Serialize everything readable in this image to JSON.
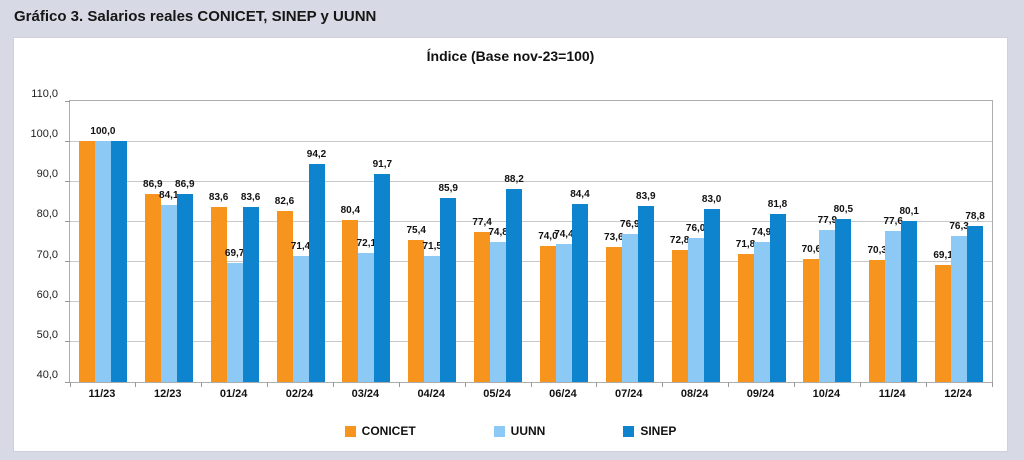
{
  "header": {
    "title": "Gráfico 3. Salarios reales CONICET, SINEP y UUNN"
  },
  "chart_data": {
    "type": "bar",
    "title": "Índice (Base nov-23=100)",
    "categories": [
      "11/23",
      "12/23",
      "01/24",
      "02/24",
      "03/24",
      "04/24",
      "05/24",
      "06/24",
      "07/24",
      "08/24",
      "09/24",
      "10/24",
      "11/24",
      "12/24"
    ],
    "series": [
      {
        "name": "CONICET",
        "color": "#F7941E",
        "values": [
          100.0,
          86.9,
          83.6,
          82.6,
          80.4,
          75.4,
          77.4,
          74.0,
          73.6,
          72.8,
          71.8,
          70.6,
          70.3,
          69.1
        ]
      },
      {
        "name": "UUNN",
        "color": "#8DC9F5",
        "values": [
          100.0,
          84.1,
          69.7,
          71.4,
          72.1,
          71.5,
          74.8,
          74.4,
          76.9,
          76.0,
          74.9,
          77.9,
          77.6,
          76.3
        ]
      },
      {
        "name": "SINEP",
        "color": "#0E83CE",
        "values": [
          100.0,
          86.9,
          83.6,
          94.2,
          91.7,
          85.9,
          88.2,
          84.4,
          83.9,
          83.0,
          81.8,
          80.5,
          80.1,
          78.8
        ]
      }
    ],
    "ylim": [
      40,
      110
    ],
    "ytick_step": 10,
    "ytick_labels": [
      "40,0",
      "50,0",
      "60,0",
      "70,0",
      "80,0",
      "90,0",
      "100,0",
      "110,0"
    ],
    "grid": true,
    "data_labels": true,
    "decimal_separator": ",",
    "legend_position": "bottom",
    "legend": [
      "CONICET",
      "UUNN",
      "SINEP"
    ]
  },
  "colors": {
    "background": "#D7DAE5",
    "panel": "#FFFFFF",
    "grid": "#C9C9C9",
    "plot_border": "#ADADAD",
    "bar_orange": "#F7941E",
    "bar_light_blue": "#8DC9F5",
    "bar_dark_blue": "#0E83CE",
    "text": "#1A1A1A"
  }
}
